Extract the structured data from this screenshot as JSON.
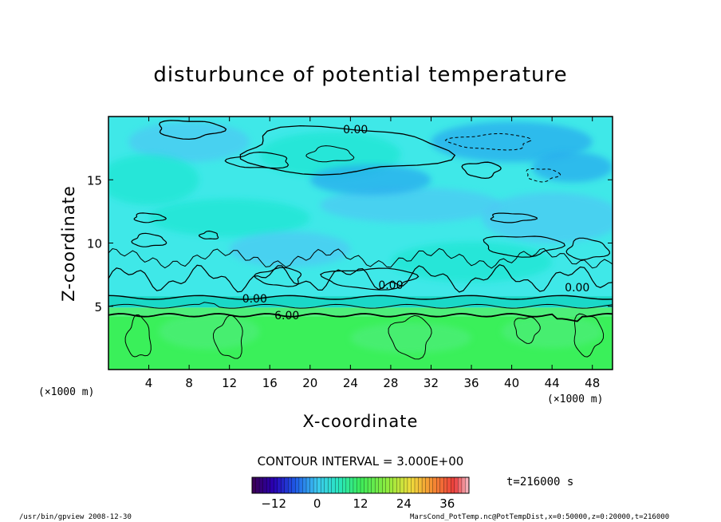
{
  "chart_data": {
    "type": "heatmap",
    "title": "disturbunce of potential temperature",
    "xlabel": "X-coordinate",
    "ylabel": "Z-coordinate",
    "x_unit_left": "(×1000 m)",
    "x_unit_right": "(×1000 m)",
    "xlim": [
      0,
      50
    ],
    "ylim": [
      0,
      20
    ],
    "x_ticks": [
      4,
      8,
      12,
      16,
      20,
      24,
      28,
      32,
      36,
      40,
      44,
      48
    ],
    "y_ticks": [
      5,
      10,
      15
    ],
    "x_tick_labels": [
      "4",
      "8",
      "12",
      "16",
      "20",
      "24",
      "28",
      "32",
      "36",
      "40",
      "44",
      "48"
    ],
    "y_tick_labels": [
      "5",
      "10",
      "15"
    ],
    "contour_interval_text": "CONTOUR INTERVAL = 3.000E+00",
    "contour_labels": [
      {
        "text": "0.00",
        "x": 24.5,
        "y": 19.0
      },
      {
        "text": "0.00",
        "x": 14.5,
        "y": 5.6
      },
      {
        "text": "6.00",
        "x": 17.7,
        "y": 4.3
      },
      {
        "text": "0.00",
        "x": 28.0,
        "y": 6.7
      },
      {
        "text": "0.00",
        "x": 46.5,
        "y": 6.5
      }
    ],
    "colorbar": {
      "ticks": [
        -12,
        0,
        12,
        24,
        36
      ],
      "tick_labels": [
        "−12",
        "0",
        "12",
        "24",
        "36"
      ],
      "range": [
        -18,
        42
      ]
    },
    "time_label": "t=216000 s",
    "footer_left": "/usr/bin/gpview  2008-12-30",
    "footer_right": "MarsCond_PotTemp.nc@PotTempDist,x=0:50000,z=0:20000,t=216000",
    "colors": {
      "cyan": "#1ee6d2",
      "teal": "#1ad8c8",
      "lightcyan": "#3fe8e8",
      "blue": "#28a8ee",
      "sky": "#4ec8f4",
      "green": "#3af05a",
      "lightgreen": "#4eee7a",
      "frame": "#000000"
    }
  }
}
